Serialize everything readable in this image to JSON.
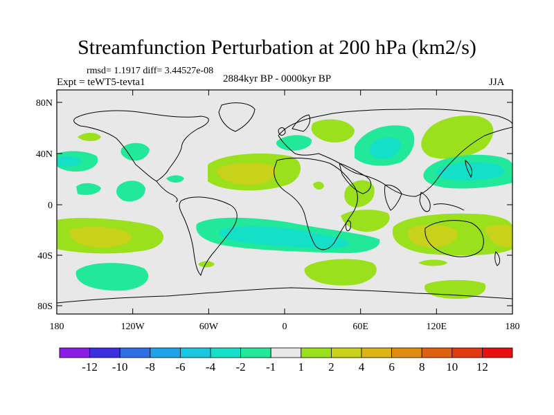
{
  "map": {
    "title": "Streamfunction Perturbation at 200 hPa (km2/s)",
    "stats": "rmsd= 1.1917 diff= 3.44527e-08",
    "experiment": "Expt = teWT5-tevta1",
    "period": "2884kyr BP - 0000kyr BP",
    "season": "JJA",
    "lon_ticks": [
      "180",
      "120W",
      "60W",
      "0",
      "60E",
      "120E",
      "180"
    ],
    "lat_ticks": [
      "80N",
      "40N",
      "0",
      "40S",
      "80S"
    ],
    "colorbar": {
      "labels": [
        "-12",
        "-10",
        "-8",
        "-6",
        "-4",
        "-2",
        "-1",
        "1",
        "2",
        "4",
        "6",
        "8",
        "10",
        "12"
      ],
      "colors": [
        "#8a1ce6",
        "#3c2fe0",
        "#2f6fe6",
        "#1ea2e8",
        "#19c8e0",
        "#14e0c8",
        "#22e89a",
        "#e8e8e8",
        "#9ae01c",
        "#c8d21a",
        "#dcb414",
        "#e08c10",
        "#e06010",
        "#e03a10",
        "#e61010"
      ]
    },
    "shading_colors": {
      "neg1": "#22e89a",
      "neg2": "#14e0c8",
      "pos1": "#9ae01c",
      "pos2": "#c8d21a",
      "ocean_bg": "#e8e8e8"
    }
  }
}
